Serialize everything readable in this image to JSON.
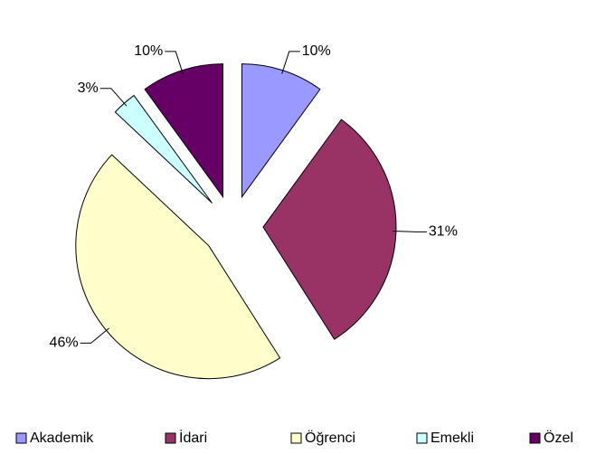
{
  "chart_data": {
    "type": "pie",
    "categories": [
      "Akademik",
      "İdari",
      "Öğrenci",
      "Emekli",
      "Özel"
    ],
    "values": [
      10,
      31,
      46,
      3,
      10
    ],
    "value_labels": [
      "10%",
      "31%",
      "46%",
      "3%",
      "10%"
    ],
    "colors": [
      "#9999ff",
      "#993366",
      "#ffffcc",
      "#ccffff",
      "#660066"
    ],
    "legend": "bottom"
  }
}
